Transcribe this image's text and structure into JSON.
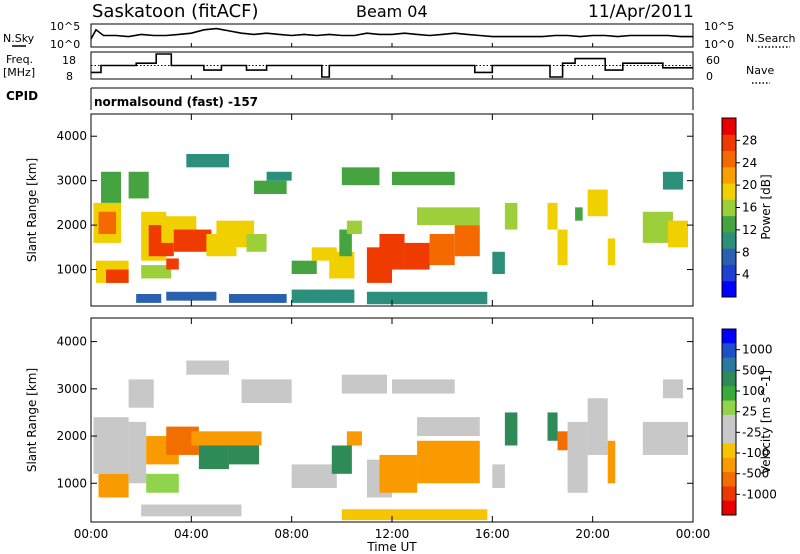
{
  "header": {
    "station": "Saskatoon (fitACF)",
    "beam": "Beam 04",
    "date": "11/Apr/2011"
  },
  "strips": {
    "sky": {
      "label": "N.Sky",
      "tick_top": "10^5",
      "tick_bottom": "10^0"
    },
    "search": {
      "label": "N.Search",
      "tick_top": "10^5",
      "tick_bottom": "10^0"
    },
    "freq": {
      "label_line1": "Freq.",
      "label_line2": "[MHz]",
      "tick_top": "18",
      "tick_bottom": "8"
    },
    "nave": {
      "label": "Nave",
      "tick_top": "60",
      "tick_bottom": "0"
    },
    "cpid": {
      "label": "CPID",
      "value": "normalsound (fast) -157"
    }
  },
  "chart_data": [
    {
      "type": "heatmap",
      "name": "power",
      "ylabel": "Slant Range [km]",
      "xlabel": "",
      "ylim": [
        180,
        4500
      ],
      "xlim": [
        0,
        24
      ],
      "yticks": [
        "1000",
        "2000",
        "3000",
        "4000"
      ],
      "colorbar": {
        "label": "Power [dB]",
        "ticks": [
          "4",
          "8",
          "12",
          "16",
          "20",
          "24",
          "28"
        ],
        "colors": [
          "#0000ff",
          "#1f3fd2",
          "#2a60b0",
          "#2c8f7c",
          "#45a340",
          "#9ccf3a",
          "#f0d000",
          "#f7a000",
          "#f46a00",
          "#ef3a00",
          "#e80000"
        ]
      },
      "cells": [
        {
          "t0": 0.1,
          "t1": 1.2,
          "r0": 1600,
          "r1": 2500,
          "level": 0.55
        },
        {
          "t0": 0.3,
          "t1": 1.0,
          "r0": 1800,
          "r1": 2300,
          "level": 0.8
        },
        {
          "t0": 0.2,
          "t1": 1.5,
          "r0": 700,
          "r1": 1200,
          "level": 0.55
        },
        {
          "t0": 0.6,
          "t1": 1.5,
          "r0": 700,
          "r1": 1000,
          "level": 0.85
        },
        {
          "t0": 0.4,
          "t1": 1.2,
          "r0": 2500,
          "r1": 3200,
          "level": 0.35
        },
        {
          "t0": 1.5,
          "t1": 2.3,
          "r0": 2600,
          "r1": 3200,
          "level": 0.35
        },
        {
          "t0": 2.0,
          "t1": 3.0,
          "r0": 1200,
          "r1": 2300,
          "level": 0.55
        },
        {
          "t0": 2.3,
          "t1": 3.3,
          "r0": 1300,
          "r1": 2000,
          "level": 0.85
        },
        {
          "t0": 2.8,
          "t1": 4.2,
          "r0": 1600,
          "r1": 2200,
          "level": 0.6
        },
        {
          "t0": 3.3,
          "t1": 4.8,
          "r0": 1400,
          "r1": 1900,
          "level": 0.9
        },
        {
          "t0": 4.6,
          "t1": 5.8,
          "r0": 1300,
          "r1": 1800,
          "level": 0.55
        },
        {
          "t0": 5.0,
          "t1": 6.5,
          "r0": 1500,
          "r1": 2100,
          "level": 0.6
        },
        {
          "t0": 6.2,
          "t1": 7.0,
          "r0": 1400,
          "r1": 1800,
          "level": 0.45
        },
        {
          "t0": 2.0,
          "t1": 3.2,
          "r0": 800,
          "r1": 1100,
          "level": 0.45
        },
        {
          "t0": 3.0,
          "t1": 3.5,
          "r0": 1000,
          "r1": 1250,
          "level": 0.85
        },
        {
          "t0": 3.8,
          "t1": 5.5,
          "r0": 3300,
          "r1": 3600,
          "level": 0.3
        },
        {
          "t0": 1.8,
          "t1": 2.8,
          "r0": 250,
          "r1": 450,
          "level": 0.2
        },
        {
          "t0": 3.0,
          "t1": 5.0,
          "r0": 300,
          "r1": 500,
          "level": 0.2
        },
        {
          "t0": 5.5,
          "t1": 7.8,
          "r0": 250,
          "r1": 450,
          "level": 0.15
        },
        {
          "t0": 6.5,
          "t1": 7.8,
          "r0": 2700,
          "r1": 3000,
          "level": 0.4
        },
        {
          "t0": 7.0,
          "t1": 8.0,
          "r0": 3000,
          "r1": 3200,
          "level": 0.3
        },
        {
          "t0": 8.0,
          "t1": 9.0,
          "r0": 900,
          "r1": 1200,
          "level": 0.4
        },
        {
          "t0": 8.8,
          "t1": 9.8,
          "r0": 1200,
          "r1": 1500,
          "level": 0.55
        },
        {
          "t0": 8.0,
          "t1": 10.5,
          "r0": 250,
          "r1": 550,
          "level": 0.25
        },
        {
          "t0": 9.5,
          "t1": 10.5,
          "r0": 800,
          "r1": 1400,
          "level": 0.6
        },
        {
          "t0": 9.9,
          "t1": 10.4,
          "r0": 1300,
          "r1": 1900,
          "level": 0.4
        },
        {
          "t0": 10.0,
          "t1": 11.5,
          "r0": 2900,
          "r1": 3300,
          "level": 0.35
        },
        {
          "t0": 10.2,
          "t1": 10.8,
          "r0": 1800,
          "r1": 2100,
          "level": 0.45
        },
        {
          "t0": 11.0,
          "t1": 12.0,
          "r0": 700,
          "r1": 1500,
          "level": 0.9
        },
        {
          "t0": 11.5,
          "t1": 12.5,
          "r0": 1000,
          "r1": 1800,
          "level": 0.9
        },
        {
          "t0": 12.5,
          "t1": 13.5,
          "r0": 1000,
          "r1": 1600,
          "level": 0.85
        },
        {
          "t0": 13.5,
          "t1": 14.5,
          "r0": 1100,
          "r1": 1800,
          "level": 0.8
        },
        {
          "t0": 14.5,
          "t1": 15.5,
          "r0": 1300,
          "r1": 2000,
          "level": 0.75
        },
        {
          "t0": 12.0,
          "t1": 14.5,
          "r0": 2900,
          "r1": 3200,
          "level": 0.35
        },
        {
          "t0": 13.0,
          "t1": 15.5,
          "r0": 2000,
          "r1": 2400,
          "level": 0.45
        },
        {
          "t0": 11.0,
          "t1": 15.8,
          "r0": 220,
          "r1": 500,
          "level": 0.3
        },
        {
          "t0": 16.5,
          "t1": 17.0,
          "r0": 1900,
          "r1": 2500,
          "level": 0.5
        },
        {
          "t0": 16.0,
          "t1": 16.5,
          "r0": 900,
          "r1": 1400,
          "level": 0.3
        },
        {
          "t0": 18.2,
          "t1": 18.6,
          "r0": 1900,
          "r1": 2500,
          "level": 0.6
        },
        {
          "t0": 18.6,
          "t1": 19.0,
          "r0": 1100,
          "r1": 1900,
          "level": 0.55
        },
        {
          "t0": 19.3,
          "t1": 19.6,
          "r0": 2100,
          "r1": 2400,
          "level": 0.4
        },
        {
          "t0": 19.8,
          "t1": 20.6,
          "r0": 2200,
          "r1": 2800,
          "level": 0.55
        },
        {
          "t0": 20.6,
          "t1": 20.9,
          "r0": 1100,
          "r1": 1700,
          "level": 0.55
        },
        {
          "t0": 22.0,
          "t1": 23.2,
          "r0": 1600,
          "r1": 2300,
          "level": 0.45
        },
        {
          "t0": 23.0,
          "t1": 23.8,
          "r0": 1500,
          "r1": 2100,
          "level": 0.55
        },
        {
          "t0": 22.8,
          "t1": 23.6,
          "r0": 2800,
          "r1": 3200,
          "level": 0.3
        }
      ]
    },
    {
      "type": "heatmap",
      "name": "velocity",
      "ylabel": "Slant Range [km]",
      "xlabel": "Time UT",
      "ylim": [
        180,
        4500
      ],
      "xlim": [
        0,
        24
      ],
      "yticks": [
        "1000",
        "2000",
        "3000",
        "4000"
      ],
      "xticks": [
        "00:00",
        "04:00",
        "08:00",
        "12:00",
        "16:00",
        "20:00",
        "00:00"
      ],
      "colorbar": {
        "label": "Velocity [m s^-1]",
        "ticks": [
          "1000",
          "500",
          "100",
          "25",
          "-25",
          "-100",
          "-500",
          "-1000"
        ],
        "colors": [
          "#0000ff",
          "#1f4fc8",
          "#2a7aa0",
          "#2e8b57",
          "#3aaa3a",
          "#8fd44a",
          "#c8c8c8",
          "#c8c8c8",
          "#f6c500",
          "#f89a00",
          "#f36e00",
          "#ec3800",
          "#e80000"
        ]
      },
      "cells": [
        {
          "t0": 0.1,
          "t1": 1.5,
          "r0": 1200,
          "r1": 2400,
          "color": "#c8c8c8"
        },
        {
          "t0": 0.3,
          "t1": 1.5,
          "r0": 700,
          "r1": 1200,
          "color": "#f89a00"
        },
        {
          "t0": 1.5,
          "t1": 2.2,
          "r0": 1000,
          "r1": 2300,
          "color": "#c8c8c8"
        },
        {
          "t0": 2.2,
          "t1": 3.5,
          "r0": 1400,
          "r1": 2000,
          "color": "#f89a00"
        },
        {
          "t0": 3.0,
          "t1": 4.3,
          "r0": 1600,
          "r1": 2200,
          "color": "#f36e00"
        },
        {
          "t0": 4.3,
          "t1": 5.5,
          "r0": 1300,
          "r1": 1900,
          "color": "#2e8b57"
        },
        {
          "t0": 5.5,
          "t1": 6.7,
          "r0": 1400,
          "r1": 1900,
          "color": "#2e8b57"
        },
        {
          "t0": 4.0,
          "t1": 6.8,
          "r0": 1800,
          "r1": 2100,
          "color": "#f89a00"
        },
        {
          "t0": 2.2,
          "t1": 3.5,
          "r0": 800,
          "r1": 1200,
          "color": "#8fd44a"
        },
        {
          "t0": 1.5,
          "t1": 2.5,
          "r0": 2600,
          "r1": 3200,
          "color": "#c8c8c8"
        },
        {
          "t0": 3.8,
          "t1": 5.5,
          "r0": 3300,
          "r1": 3600,
          "color": "#c8c8c8"
        },
        {
          "t0": 6.0,
          "t1": 8.0,
          "r0": 2700,
          "r1": 3200,
          "color": "#c8c8c8"
        },
        {
          "t0": 8.0,
          "t1": 9.8,
          "r0": 900,
          "r1": 1400,
          "color": "#c8c8c8"
        },
        {
          "t0": 9.6,
          "t1": 10.4,
          "r0": 1200,
          "r1": 1800,
          "color": "#2e8b57"
        },
        {
          "t0": 10.2,
          "t1": 10.8,
          "r0": 1800,
          "r1": 2100,
          "color": "#f89a00"
        },
        {
          "t0": 10.0,
          "t1": 11.8,
          "r0": 2900,
          "r1": 3300,
          "color": "#c8c8c8"
        },
        {
          "t0": 11.0,
          "t1": 12.0,
          "r0": 700,
          "r1": 1500,
          "color": "#c8c8c8"
        },
        {
          "t0": 11.5,
          "t1": 13.0,
          "r0": 800,
          "r1": 1600,
          "color": "#f89a00"
        },
        {
          "t0": 13.0,
          "t1": 15.5,
          "r0": 1000,
          "r1": 1900,
          "color": "#f89a00"
        },
        {
          "t0": 12.0,
          "t1": 14.5,
          "r0": 2900,
          "r1": 3200,
          "color": "#c8c8c8"
        },
        {
          "t0": 13.0,
          "t1": 15.5,
          "r0": 2000,
          "r1": 2400,
          "color": "#c8c8c8"
        },
        {
          "t0": 10.0,
          "t1": 15.8,
          "r0": 220,
          "r1": 450,
          "color": "#f6c500"
        },
        {
          "t0": 2.0,
          "t1": 6.0,
          "r0": 300,
          "r1": 550,
          "color": "#c8c8c8"
        },
        {
          "t0": 16.5,
          "t1": 17.0,
          "r0": 1800,
          "r1": 2500,
          "color": "#2e8b57"
        },
        {
          "t0": 16.0,
          "t1": 16.5,
          "r0": 900,
          "r1": 1400,
          "color": "#c8c8c8"
        },
        {
          "t0": 18.2,
          "t1": 18.6,
          "r0": 1900,
          "r1": 2500,
          "color": "#2e8b57"
        },
        {
          "t0": 18.6,
          "t1": 19.0,
          "r0": 1700,
          "r1": 2100,
          "color": "#f36e00"
        },
        {
          "t0": 19.0,
          "t1": 19.8,
          "r0": 800,
          "r1": 2300,
          "color": "#c8c8c8"
        },
        {
          "t0": 19.8,
          "t1": 20.6,
          "r0": 1600,
          "r1": 2800,
          "color": "#c8c8c8"
        },
        {
          "t0": 20.6,
          "t1": 20.9,
          "r0": 1000,
          "r1": 1900,
          "color": "#f89a00"
        },
        {
          "t0": 22.0,
          "t1": 23.8,
          "r0": 1600,
          "r1": 2300,
          "color": "#c8c8c8"
        },
        {
          "t0": 22.8,
          "t1": 23.6,
          "r0": 2800,
          "r1": 3200,
          "color": "#c8c8c8"
        }
      ]
    },
    {
      "type": "line",
      "name": "n-sky-n-search",
      "x": [
        0,
        0.2,
        0.5,
        1,
        1.5,
        2,
        2.5,
        3,
        3.5,
        4,
        4.5,
        5,
        5.5,
        6,
        6.5,
        7,
        7.5,
        8,
        8.5,
        9,
        9.5,
        10,
        10.5,
        11,
        11.5,
        12,
        12.5,
        13,
        13.5,
        14,
        14.5,
        15,
        15.5,
        16,
        16.5,
        17,
        17.5,
        18,
        18.5,
        19,
        19.5,
        20,
        20.5,
        21,
        21.5,
        22,
        22.5,
        23,
        23.5,
        24
      ],
      "values": [
        0.35,
        0.75,
        0.5,
        0.5,
        0.45,
        0.55,
        0.5,
        0.5,
        0.55,
        0.6,
        0.75,
        0.8,
        0.7,
        0.6,
        0.55,
        0.6,
        0.55,
        0.5,
        0.55,
        0.5,
        0.55,
        0.5,
        0.5,
        0.6,
        0.55,
        0.55,
        0.6,
        0.55,
        0.5,
        0.55,
        0.6,
        0.55,
        0.5,
        0.45,
        0.45,
        0.45,
        0.45,
        0.45,
        0.5,
        0.5,
        0.45,
        0.5,
        0.5,
        0.45,
        0.5,
        0.5,
        0.5,
        0.5,
        0.45,
        0.45
      ],
      "ylim": [
        0,
        1
      ]
    },
    {
      "type": "line",
      "name": "freq",
      "x": [
        0,
        0.4,
        0.4,
        1.8,
        1.8,
        2.6,
        2.6,
        3.2,
        3.2,
        4.5,
        4.5,
        5.2,
        5.2,
        6.2,
        6.2,
        7.0,
        7.0,
        9.2,
        9.2,
        9.5,
        9.5,
        10.5,
        10.5,
        15.3,
        15.3,
        16.0,
        16.0,
        18.3,
        18.3,
        18.8,
        18.8,
        19.3,
        19.3,
        20.5,
        20.5,
        21.2,
        21.2,
        22.8,
        22.8,
        24
      ],
      "values": [
        10,
        10,
        13,
        13,
        14,
        14,
        18,
        18,
        13,
        13,
        11,
        11,
        13,
        13,
        11,
        11,
        13,
        13,
        8,
        8,
        13,
        13,
        13,
        13,
        10,
        10,
        13,
        13,
        8,
        8,
        14,
        14,
        16,
        16,
        11,
        11,
        14,
        14,
        12,
        12
      ],
      "ylim": [
        8,
        18
      ]
    },
    {
      "type": "line",
      "name": "nave",
      "x": [
        0,
        24
      ],
      "values": [
        30,
        30
      ],
      "ylim": [
        0,
        60
      ]
    }
  ]
}
